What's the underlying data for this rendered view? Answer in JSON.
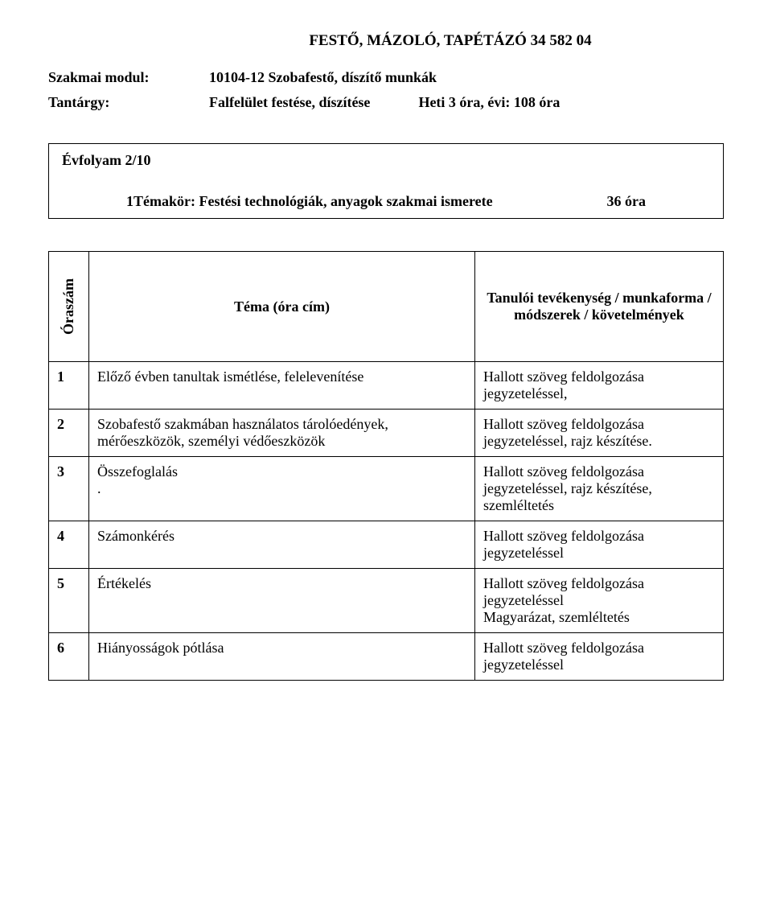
{
  "header": {
    "title": "FESTŐ, MÁZOLÓ, TAPÉTÁZÓ 34 582 04"
  },
  "meta": {
    "module_label": "Szakmai modul:",
    "module_value": "10104-12 Szobafestő, díszítő munkák",
    "subject_label": "Tantárgy:",
    "subject_value": "Falfelület festése, díszítése",
    "subject_extra": "Heti 3 óra, évi: 108 óra"
  },
  "box": {
    "line1": "Évfolyam  2/10",
    "line2_text": "1Témakör: Festési technológiák, anyagok szakmai ismerete",
    "line2_hours": "36 óra"
  },
  "table": {
    "headers": {
      "col1": "Óraszám",
      "col2": "Téma (óra cím)",
      "col3": "Tanulói tevékenység / munkaforma / módszerek / követelmények"
    },
    "rows": [
      {
        "n": "1",
        "topic": "Előző évben tanultak ismétlése, felelevenítése",
        "activity": "Hallott szöveg feldolgozása jegyzeteléssel,"
      },
      {
        "n": "2",
        "topic": "Szobafestő szakmában használatos tárolóedények, mérőeszközök, személyi védőeszközök",
        "activity": "Hallott szöveg feldolgozása jegyzeteléssel, rajz készítése."
      },
      {
        "n": "3",
        "topic": "Összefoglalás\n.",
        "activity": "Hallott szöveg feldolgozása jegyzeteléssel, rajz készítése,\nszemléltetés"
      },
      {
        "n": "4",
        "topic": "Számonkérés",
        "activity": "Hallott szöveg  feldolgozása\njegyzeteléssel"
      },
      {
        "n": "5",
        "topic": "Értékelés",
        "activity": "Hallott szöveg feldolgozása jegyzeteléssel\nMagyarázat, szemléltetés"
      },
      {
        "n": "6",
        "topic": "Hiányosságok pótlása",
        "activity": "Hallott szöveg feldolgozása jegyzeteléssel"
      }
    ]
  }
}
